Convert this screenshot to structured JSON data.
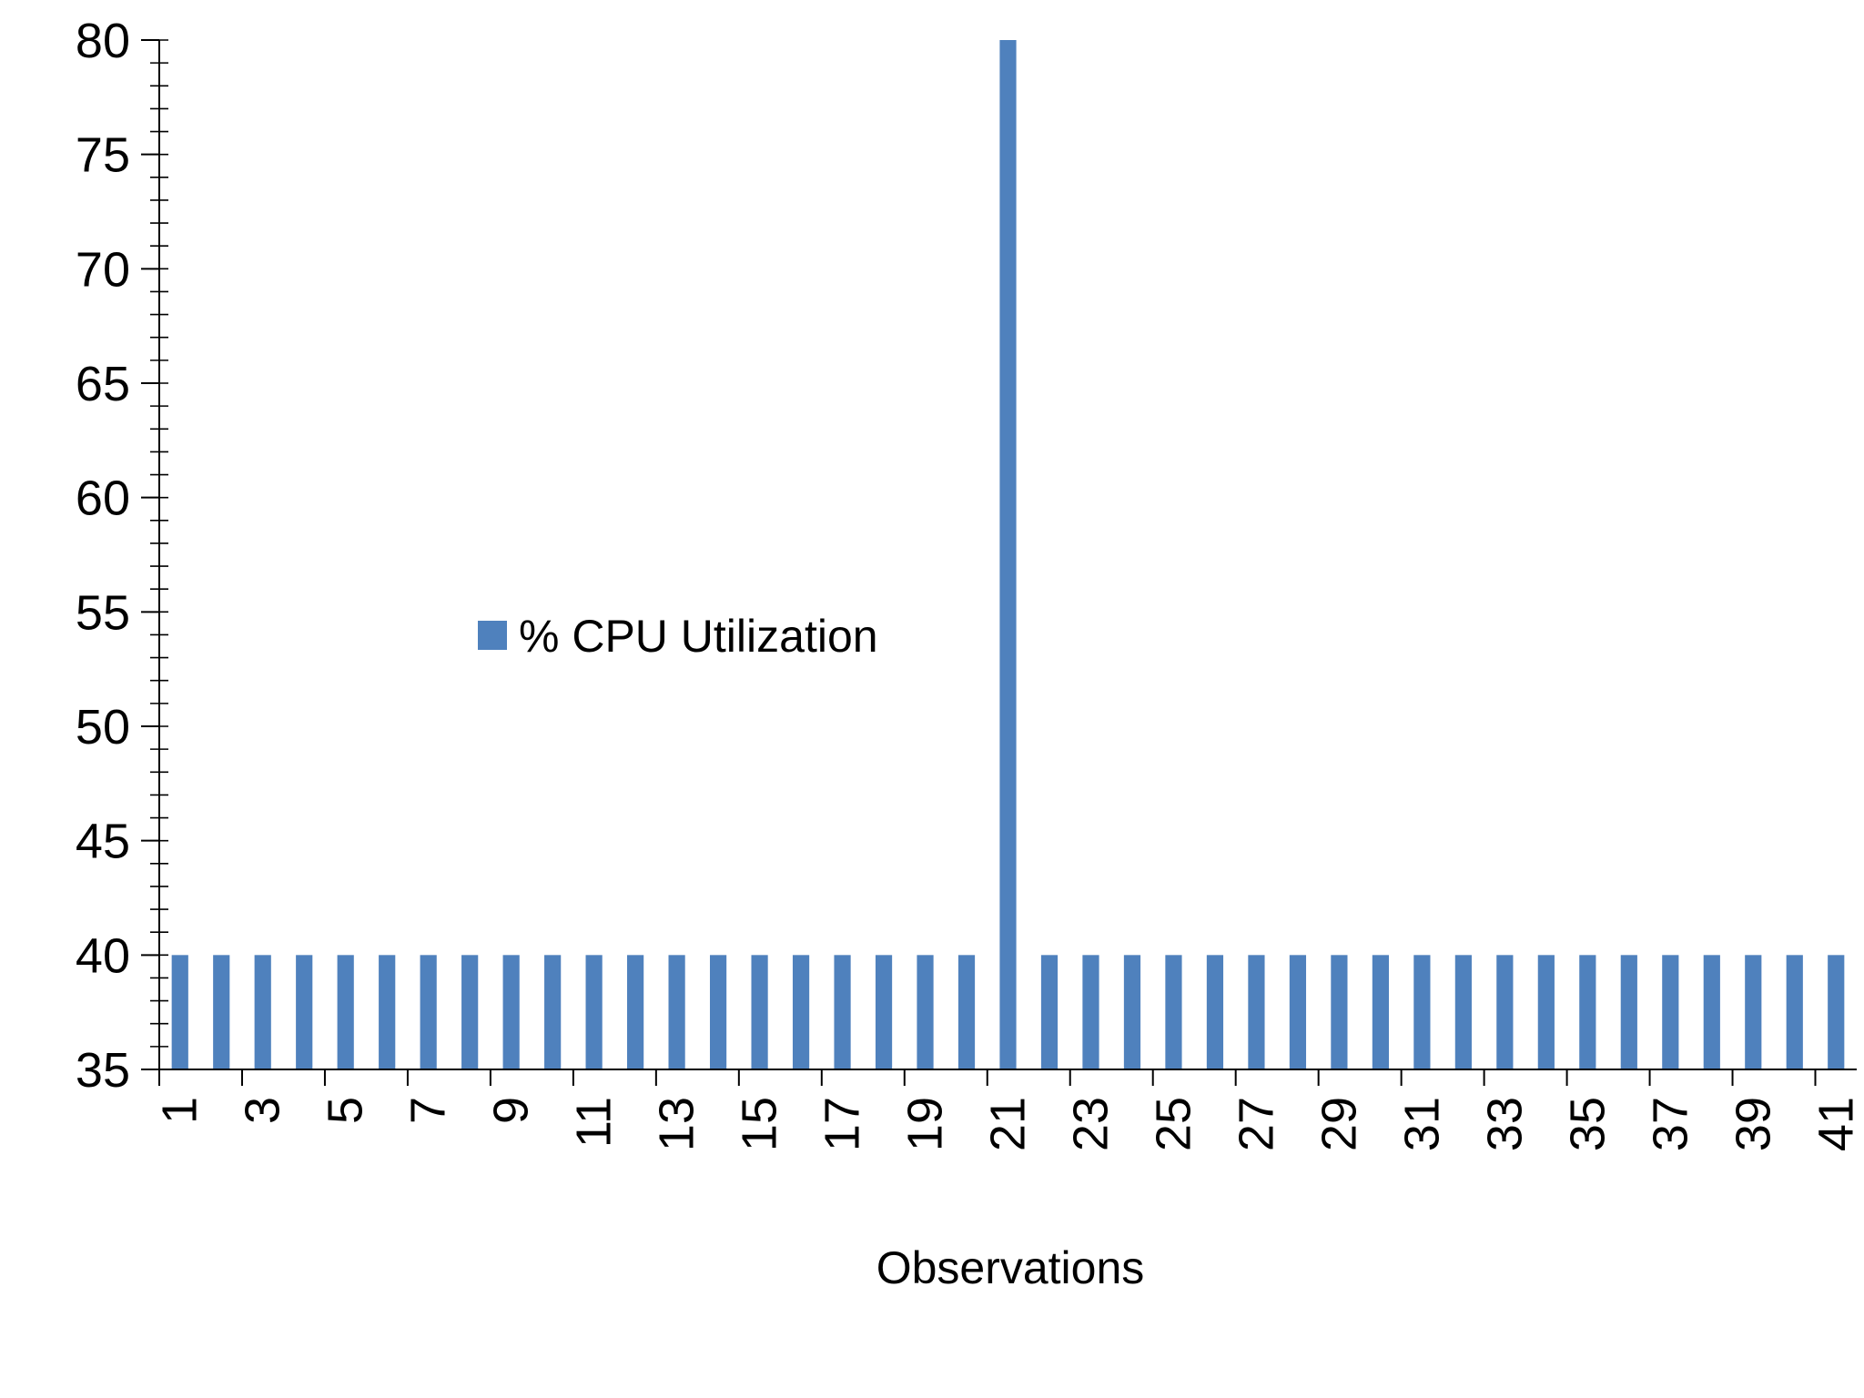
{
  "chart_data": {
    "type": "bar",
    "title": "",
    "xlabel": "Observations",
    "ylabel": "",
    "ylim": [
      35,
      80
    ],
    "y_ticks": [
      35,
      40,
      45,
      50,
      55,
      60,
      65,
      70,
      75,
      80
    ],
    "y_minor_step": 1,
    "categories": [
      "1",
      "2",
      "3",
      "4",
      "5",
      "6",
      "7",
      "8",
      "9",
      "10",
      "11",
      "12",
      "13",
      "14",
      "15",
      "16",
      "17",
      "18",
      "19",
      "20",
      "21",
      "22",
      "23",
      "24",
      "25",
      "26",
      "27",
      "28",
      "29",
      "30",
      "31",
      "32",
      "33",
      "34",
      "35",
      "36",
      "37",
      "38",
      "39",
      "40",
      "41"
    ],
    "x_tick_labels_shown": [
      "1",
      "3",
      "5",
      "7",
      "9",
      "11",
      "13",
      "15",
      "17",
      "19",
      "21",
      "23",
      "25",
      "27",
      "29",
      "31",
      "33",
      "35",
      "37",
      "39",
      "41"
    ],
    "series": [
      {
        "name": "% CPU Utilization",
        "color": "#4f81bd",
        "values": [
          40,
          40,
          40,
          40,
          40,
          40,
          40,
          40,
          40,
          40,
          40,
          40,
          40,
          40,
          40,
          40,
          40,
          40,
          40,
          40,
          80,
          40,
          40,
          40,
          40,
          40,
          40,
          40,
          40,
          40,
          40,
          40,
          40,
          40,
          40,
          40,
          40,
          40,
          40,
          40,
          40
        ]
      }
    ],
    "legend_position": "center-left",
    "grid": false
  }
}
